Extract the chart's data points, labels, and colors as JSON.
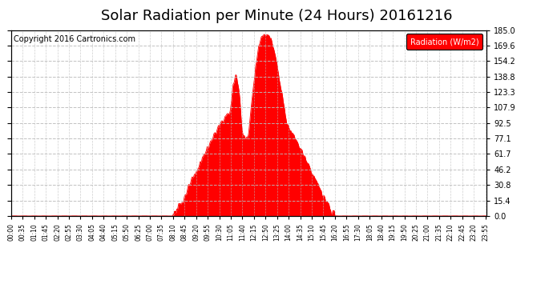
{
  "title": "Solar Radiation per Minute (24 Hours) 20161216",
  "copyright": "Copyright 2016 Cartronics.com",
  "legend_label": "Radiation (W/m2)",
  "ylim": [
    0.0,
    185.0
  ],
  "yticks": [
    0.0,
    15.4,
    30.8,
    46.2,
    61.7,
    77.1,
    92.5,
    107.9,
    123.3,
    138.8,
    154.2,
    169.6,
    185.0
  ],
  "ytick_labels": [
    "0.0",
    "15.4",
    "30.8",
    "46.2",
    "61.7",
    "77.1",
    "92.5",
    "107.9",
    "123.3",
    "138.8",
    "154.2",
    "169.6",
    "185.0"
  ],
  "fill_color": "#FF0000",
  "bg_color": "#FFFFFF",
  "grid_color": "#BBBBBB",
  "dashed_zero_color": "#FF0000",
  "title_fontsize": 13,
  "copyright_fontsize": 7,
  "legend_bg": "#FF0000",
  "legend_text_color": "#FFFFFF",
  "total_minutes": 1440,
  "tick_step": 35
}
